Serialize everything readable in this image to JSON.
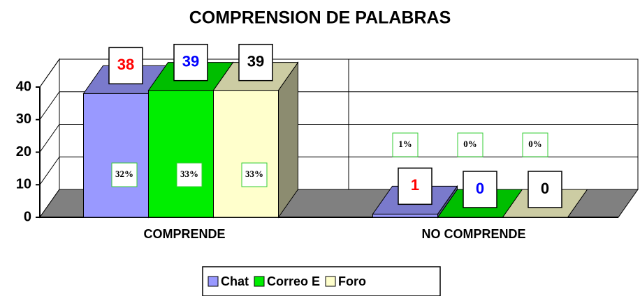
{
  "chart_data": {
    "type": "bar3d",
    "title": "COMPRENSION DE PALABRAS",
    "categories": [
      "COMPRENDE",
      "NO COMPRENDE"
    ],
    "series": [
      {
        "name": "Chat",
        "color": "#9999ff",
        "label_color": "#ff0000",
        "values": [
          38,
          1
        ],
        "percent_labels": [
          "32%",
          "1%"
        ]
      },
      {
        "name": "Correo E",
        "color": "#00ee00",
        "label_color": "#0000ff",
        "values": [
          39,
          0
        ],
        "percent_labels": [
          "33%",
          "0%"
        ]
      },
      {
        "name": "Foro",
        "color": "#ffffcc",
        "label_color": "#000000",
        "values": [
          39,
          0
        ],
        "percent_labels": [
          "33%",
          "0%"
        ]
      }
    ],
    "ylim": [
      0,
      40
    ],
    "yticks": [
      0,
      10,
      20,
      30,
      40
    ],
    "grid": true,
    "legend": "bottom"
  }
}
